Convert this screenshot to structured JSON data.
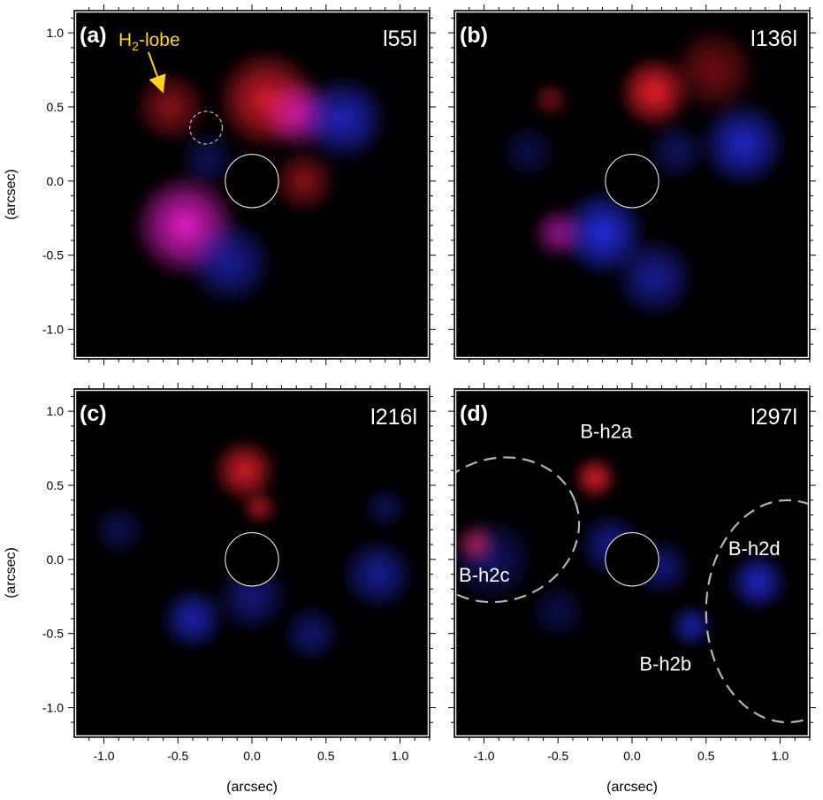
{
  "chart_data": {
    "type": "heatmap",
    "xlabel": "(arcsec)",
    "ylabel": "(arcsec)",
    "xlim": [
      -1.2,
      1.2
    ],
    "ylim": [
      -1.2,
      1.15
    ],
    "xticks": [
      -1.0,
      -0.5,
      0.0,
      0.5,
      1.0
    ],
    "xtick_labels": [
      "-1.0",
      "-0.5",
      "0.0",
      "0.5",
      "1.0"
    ],
    "yticks": [
      1.0,
      0.5,
      0.0,
      -0.5,
      -1.0
    ],
    "ytick_labels": [
      "1.0",
      "0.5",
      "0.0",
      "-0.5",
      "-1.0"
    ],
    "colors": {
      "red_channel": "#ff2030",
      "blue_channel": "#2a30ff",
      "magenta_overlap": "#ff20e0",
      "background": "#000000",
      "annotation": "#ffd21c",
      "dashed": "#b4b4b4"
    },
    "coronagraph_radius": 0.18,
    "panels": [
      {
        "label": "(a)",
        "angle_label": "l55l",
        "annotation": {
          "text_main": "H",
          "text_sub": "2",
          "text_tail": "-lobe",
          "arrow_to": [
            -0.63,
            0.58
          ]
        },
        "dashed_circles": [
          {
            "cx": -0.31,
            "cy": 0.36,
            "r": 0.11
          }
        ],
        "blobs": [
          {
            "x": -0.45,
            "y": -0.3,
            "r": 0.36,
            "color": "magenta",
            "intensity": 0.9
          },
          {
            "x": -0.15,
            "y": -0.55,
            "r": 0.3,
            "color": "blue",
            "intensity": 0.6
          },
          {
            "x": 0.1,
            "y": 0.55,
            "r": 0.35,
            "color": "red",
            "intensity": 0.85
          },
          {
            "x": 0.32,
            "y": 0.45,
            "r": 0.25,
            "color": "magenta",
            "intensity": 0.7
          },
          {
            "x": 0.62,
            "y": 0.42,
            "r": 0.3,
            "color": "blue",
            "intensity": 0.75
          },
          {
            "x": -0.55,
            "y": 0.5,
            "r": 0.25,
            "color": "red",
            "intensity": 0.55
          },
          {
            "x": -0.3,
            "y": 0.15,
            "r": 0.2,
            "color": "blue",
            "intensity": 0.35
          },
          {
            "x": 0.35,
            "y": 0.0,
            "r": 0.22,
            "color": "red",
            "intensity": 0.55
          }
        ]
      },
      {
        "label": "(b)",
        "angle_label": "l136l",
        "blobs": [
          {
            "x": 0.15,
            "y": 0.6,
            "r": 0.25,
            "color": "red",
            "intensity": 0.95
          },
          {
            "x": 0.55,
            "y": 0.75,
            "r": 0.3,
            "color": "red",
            "intensity": 0.45
          },
          {
            "x": 0.75,
            "y": 0.25,
            "r": 0.3,
            "color": "blue",
            "intensity": 0.8
          },
          {
            "x": 0.3,
            "y": 0.2,
            "r": 0.2,
            "color": "blue",
            "intensity": 0.4
          },
          {
            "x": -0.2,
            "y": -0.35,
            "r": 0.3,
            "color": "blue",
            "intensity": 0.9
          },
          {
            "x": -0.5,
            "y": -0.35,
            "r": 0.18,
            "color": "magenta",
            "intensity": 0.6
          },
          {
            "x": 0.15,
            "y": -0.65,
            "r": 0.28,
            "color": "blue",
            "intensity": 0.6
          },
          {
            "x": -0.55,
            "y": 0.55,
            "r": 0.12,
            "color": "red",
            "intensity": 0.5
          },
          {
            "x": -0.7,
            "y": 0.2,
            "r": 0.2,
            "color": "blue",
            "intensity": 0.3
          }
        ]
      },
      {
        "label": "(c)",
        "angle_label": "l216l",
        "blobs": [
          {
            "x": -0.05,
            "y": 0.6,
            "r": 0.22,
            "color": "red",
            "intensity": 0.85
          },
          {
            "x": 0.05,
            "y": 0.35,
            "r": 0.12,
            "color": "red",
            "intensity": 0.7
          },
          {
            "x": -0.4,
            "y": -0.4,
            "r": 0.22,
            "color": "blue",
            "intensity": 0.7
          },
          {
            "x": 0.0,
            "y": -0.25,
            "r": 0.25,
            "color": "blue",
            "intensity": 0.5
          },
          {
            "x": 0.4,
            "y": -0.5,
            "r": 0.2,
            "color": "blue",
            "intensity": 0.45
          },
          {
            "x": 0.85,
            "y": -0.1,
            "r": 0.25,
            "color": "blue",
            "intensity": 0.6
          },
          {
            "x": -0.9,
            "y": 0.2,
            "r": 0.18,
            "color": "blue",
            "intensity": 0.35
          },
          {
            "x": 0.9,
            "y": 0.35,
            "r": 0.15,
            "color": "blue",
            "intensity": 0.35
          }
        ]
      },
      {
        "label": "(d)",
        "angle_label": "l297l",
        "feature_labels": [
          {
            "text": "B-h2a",
            "x": -0.35,
            "y": 0.82
          },
          {
            "text": "B-h2c",
            "x": -1.17,
            "y": -0.15
          },
          {
            "text": "B-h2d",
            "x": 0.65,
            "y": 0.03
          },
          {
            "text": "B-h2b",
            "x": 0.05,
            "y": -0.75
          }
        ],
        "dashed_ellipses": [
          {
            "cx": -0.9,
            "cy": 0.2,
            "rx": 0.55,
            "ry": 0.48,
            "rot": -20
          },
          {
            "cx": 1.05,
            "cy": -0.35,
            "rx": 0.55,
            "ry": 0.75,
            "rot": 0
          }
        ],
        "blobs": [
          {
            "x": -0.25,
            "y": 0.55,
            "r": 0.15,
            "color": "red",
            "intensity": 0.9
          },
          {
            "x": -1.05,
            "y": 0.1,
            "r": 0.14,
            "color": "red",
            "intensity": 0.85
          },
          {
            "x": -0.95,
            "y": 0.0,
            "r": 0.3,
            "color": "blue",
            "intensity": 0.4
          },
          {
            "x": -0.15,
            "y": 0.1,
            "r": 0.22,
            "color": "blue",
            "intensity": 0.55
          },
          {
            "x": 0.2,
            "y": -0.05,
            "r": 0.2,
            "color": "blue",
            "intensity": 0.5
          },
          {
            "x": 0.4,
            "y": -0.45,
            "r": 0.15,
            "color": "blue",
            "intensity": 0.7
          },
          {
            "x": 0.85,
            "y": -0.15,
            "r": 0.2,
            "color": "blue",
            "intensity": 0.8
          },
          {
            "x": -0.5,
            "y": -0.35,
            "r": 0.2,
            "color": "blue",
            "intensity": 0.3
          }
        ]
      }
    ]
  }
}
